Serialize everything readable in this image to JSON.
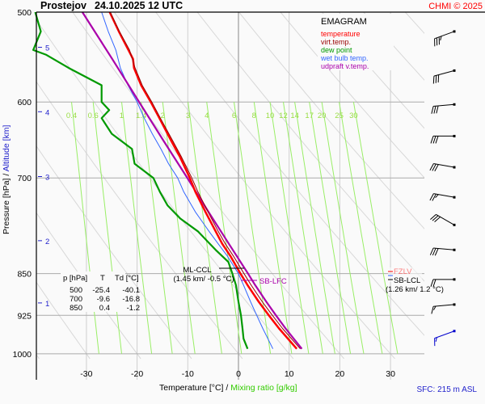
{
  "header": {
    "station": "Prostejov",
    "datetime": "24.10.2025 12 UTC",
    "copyright": "CHMI © 2025"
  },
  "legend": {
    "title": "EMAGRAM",
    "items": [
      {
        "label": "temperature",
        "color": "#ff0000"
      },
      {
        "label": "virt.temp.",
        "color": "#990000"
      },
      {
        "label": "dew point",
        "color": "#009900"
      },
      {
        "label": "wet bulb temp.",
        "color": "#3366ff"
      },
      {
        "label": "udpraft v.temp.",
        "color": "#aa00aa"
      }
    ]
  },
  "table": {
    "headers": [
      "p [hPa]",
      "T",
      "Td [°C]"
    ],
    "rows": [
      [
        "500",
        "-25.4",
        "-40.1"
      ],
      [
        "700",
        "-9.6",
        "-16.8"
      ],
      [
        "850",
        "0.4",
        "-1.2"
      ]
    ]
  },
  "annotations": {
    "ml_ccl": "ML-CCL",
    "ml_ccl_detail": "(1.45 km/ -0.5 °C)",
    "sb_lfc": "SB-LFC",
    "fzl": "FZLV",
    "sb_lcl": "SB-LCL",
    "sb_lcl_detail": "(1.26 km/ 1.2 °C)"
  },
  "footer": {
    "sfc": "SFC: 215 m ASL"
  },
  "chart_data": {
    "type": "line",
    "title": "Prostejov 24.10.2025 12 UTC",
    "xlabel": "Temperature [°C]",
    "xlabel2": "Mixing ratio [g/kg]",
    "ylabel": "Pressure [hPa]",
    "ylabel2": "Altitude [km]",
    "xlim": [
      -40,
      37
    ],
    "ylim": [
      1000,
      500
    ],
    "x_ticks": [
      -30,
      -20,
      -10,
      0,
      10,
      20,
      30
    ],
    "y_ticks": [
      500,
      600,
      700,
      850,
      925,
      1000
    ],
    "altitude_ticks": [
      {
        "km": 1,
        "p": 902
      },
      {
        "km": 2,
        "p": 795
      },
      {
        "km": 3,
        "p": 698
      },
      {
        "km": 4,
        "p": 612
      },
      {
        "km": 5,
        "p": 537
      }
    ],
    "mixing_ratio_labels": [
      "0.4",
      "0.6",
      "1",
      "1.4",
      "2",
      "3",
      "4",
      "6",
      "8",
      "10",
      "12",
      "14",
      "17",
      "20",
      "25",
      "30"
    ],
    "mixing_ratio_values": [
      0.4,
      0.6,
      1,
      1.4,
      2,
      3,
      4,
      6,
      8,
      10,
      12,
      14,
      17,
      20,
      25,
      30
    ],
    "grid": true,
    "series": [
      {
        "name": "temperature",
        "color": "#ff0000",
        "p": [
          990,
          950,
          925,
          900,
          870,
          850,
          820,
          800,
          780,
          750,
          720,
          700,
          670,
          650,
          620,
          600,
          580,
          560,
          550,
          540,
          520,
          500
        ],
        "t": [
          11.5,
          8.0,
          6.0,
          4.0,
          1.8,
          0.4,
          -1.6,
          -3.2,
          -4.5,
          -6.5,
          -8.5,
          -9.6,
          -11.6,
          -13.2,
          -15.6,
          -17.3,
          -19.2,
          -20.6,
          -20.8,
          -21.7,
          -23.6,
          -25.4
        ]
      },
      {
        "name": "virt.temp.",
        "color": "#990000",
        "p": [
          990,
          950,
          925,
          900,
          870,
          850,
          820,
          800,
          780,
          750,
          720,
          700,
          670,
          650,
          620,
          600,
          580,
          560,
          540,
          520,
          500
        ],
        "t": [
          12.2,
          8.7,
          6.7,
          4.7,
          2.5,
          1.1,
          -1.0,
          -2.6,
          -4.0,
          -6.0,
          -8.0,
          -9.2,
          -11.3,
          -12.9,
          -15.4,
          -17.1,
          -19.0,
          -20.4,
          -21.5,
          -23.5,
          -25.3
        ]
      },
      {
        "name": "dew point",
        "color": "#009900",
        "p": [
          990,
          970,
          950,
          925,
          900,
          870,
          850,
          830,
          810,
          780,
          760,
          740,
          720,
          700,
          680,
          660,
          640,
          620,
          610,
          600,
          580,
          560,
          545,
          540,
          520,
          500
        ],
        "t": [
          1.8,
          1.0,
          0.8,
          0.5,
          0.0,
          -0.5,
          -1.2,
          -2.0,
          -4.5,
          -8.0,
          -11.5,
          -14.0,
          -15.5,
          -16.8,
          -20.5,
          -21.0,
          -25.0,
          -27.0,
          -25.5,
          -27.0,
          -27.0,
          -33.5,
          -38.0,
          -40.5,
          -39.0,
          -40.1
        ]
      },
      {
        "name": "wet bulb temp.",
        "color": "#3366ff",
        "p": [
          990,
          950,
          925,
          900,
          870,
          850,
          820,
          800,
          780,
          750,
          720,
          700,
          680,
          660,
          640,
          620,
          600,
          580,
          560,
          540,
          520,
          500
        ],
        "t": [
          6.8,
          4.8,
          3.6,
          2.4,
          1.0,
          0.0,
          -2.2,
          -4.0,
          -5.8,
          -8.5,
          -10.8,
          -12.0,
          -13.8,
          -15.3,
          -17.0,
          -18.6,
          -20.0,
          -21.8,
          -23.3,
          -24.2,
          -25.7,
          -27.0
        ]
      },
      {
        "name": "udpraft v.temp.",
        "color": "#aa00aa",
        "p": [
          990,
          950,
          925,
          900,
          870,
          850,
          800,
          750,
          700,
          650,
          600,
          550,
          500
        ],
        "t": [
          12.5,
          9.3,
          7.4,
          5.5,
          3.3,
          1.9,
          -1.9,
          -5.9,
          -10.1,
          -14.7,
          -19.6,
          -24.9,
          -30.8
        ]
      }
    ],
    "wind_barbs": [
      {
        "p": 520,
        "dir": 250,
        "speed_kt": 35
      },
      {
        "p": 563,
        "dir": 255,
        "speed_kt": 30
      },
      {
        "p": 603,
        "dir": 265,
        "speed_kt": 30
      },
      {
        "p": 643,
        "dir": 270,
        "speed_kt": 30
      },
      {
        "p": 685,
        "dir": 280,
        "speed_kt": 30
      },
      {
        "p": 728,
        "dir": 280,
        "speed_kt": 25
      },
      {
        "p": 770,
        "dir": 300,
        "speed_kt": 30
      },
      {
        "p": 810,
        "dir": 275,
        "speed_kt": 30
      },
      {
        "p": 860,
        "dir": 270,
        "speed_kt": 20
      },
      {
        "p": 905,
        "dir": 265,
        "speed_kt": 15
      },
      {
        "p": 955,
        "dir": 250,
        "speed_kt": 15
      }
    ]
  }
}
